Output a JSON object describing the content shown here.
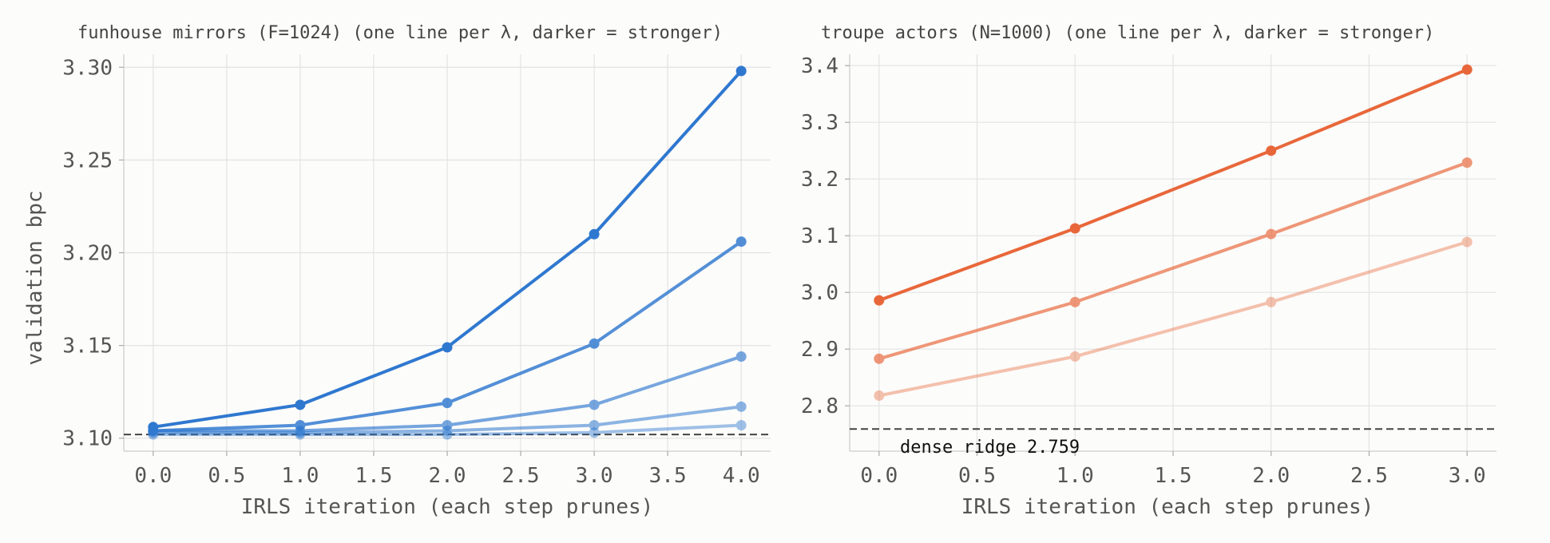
{
  "colors": {
    "blue": "#2f78d0",
    "orange": "#e8673a",
    "ref_line": "#444444"
  },
  "chart_data": [
    {
      "type": "line",
      "title": "funhouse mirrors (F=1024)  (one line per λ, darker = stronger)",
      "xlabel": "IRLS iteration (each step prunes)",
      "ylabel": "validation bpc",
      "xlim": [
        -0.2,
        4.2
      ],
      "ylim": [
        3.093,
        3.307
      ],
      "xticks": [
        0.0,
        0.5,
        1.0,
        1.5,
        2.0,
        2.5,
        3.0,
        3.5,
        4.0
      ],
      "xtick_labels": [
        "0.0",
        "0.5",
        "1.0",
        "1.5",
        "2.0",
        "2.5",
        "3.0",
        "3.5",
        "4.0"
      ],
      "yticks": [
        3.1,
        3.15,
        3.2,
        3.25,
        3.3
      ],
      "ytick_labels": [
        "3.10",
        "3.15",
        "3.20",
        "3.25",
        "3.30"
      ],
      "grid": true,
      "color": "#2f78d0",
      "reference_line": {
        "y": 3.102,
        "label": ""
      },
      "series": [
        {
          "x": [
            0,
            1,
            2,
            3,
            4
          ],
          "values": [
            3.102,
            3.102,
            3.102,
            3.103,
            3.107
          ],
          "opacity": 0.45
        },
        {
          "x": [
            0,
            1,
            2,
            3,
            4
          ],
          "values": [
            3.103,
            3.103,
            3.104,
            3.107,
            3.117
          ],
          "opacity": 0.55
        },
        {
          "x": [
            0,
            1,
            2,
            3,
            4
          ],
          "values": [
            3.104,
            3.104,
            3.107,
            3.118,
            3.144
          ],
          "opacity": 0.65
        },
        {
          "x": [
            0,
            1,
            2,
            3,
            4
          ],
          "values": [
            3.104,
            3.107,
            3.119,
            3.151,
            3.206
          ],
          "opacity": 0.82
        },
        {
          "x": [
            0,
            1,
            2,
            3,
            4
          ],
          "values": [
            3.106,
            3.118,
            3.149,
            3.21,
            3.298
          ],
          "opacity": 1.0
        }
      ]
    },
    {
      "type": "line",
      "title": "troupe actors (N=1000)  (one line per λ, darker = stronger)",
      "xlabel": "IRLS iteration (each step prunes)",
      "ylabel": "",
      "xlim": [
        -0.15,
        3.15
      ],
      "ylim": [
        2.72,
        3.42
      ],
      "xticks": [
        0.0,
        0.5,
        1.0,
        1.5,
        2.0,
        2.5,
        3.0
      ],
      "xtick_labels": [
        "0.0",
        "0.5",
        "1.0",
        "1.5",
        "2.0",
        "2.5",
        "3.0"
      ],
      "yticks": [
        2.8,
        2.9,
        3.0,
        3.1,
        3.2,
        3.3,
        3.4
      ],
      "ytick_labels": [
        "2.8",
        "2.9",
        "3.0",
        "3.1",
        "3.2",
        "3.3",
        "3.4"
      ],
      "grid": true,
      "color": "#e8673a",
      "reference_line": {
        "y": 2.759,
        "label": "dense ridge  2.759"
      },
      "series": [
        {
          "x": [
            0,
            1,
            2,
            3
          ],
          "values": [
            2.818,
            2.887,
            2.983,
            3.089
          ],
          "opacity": 0.4
        },
        {
          "x": [
            0,
            1,
            2,
            3
          ],
          "values": [
            2.883,
            2.983,
            3.103,
            3.229
          ],
          "opacity": 0.68
        },
        {
          "x": [
            0,
            1,
            2,
            3
          ],
          "values": [
            2.986,
            3.113,
            3.25,
            3.393
          ],
          "opacity": 1.0
        }
      ]
    }
  ]
}
